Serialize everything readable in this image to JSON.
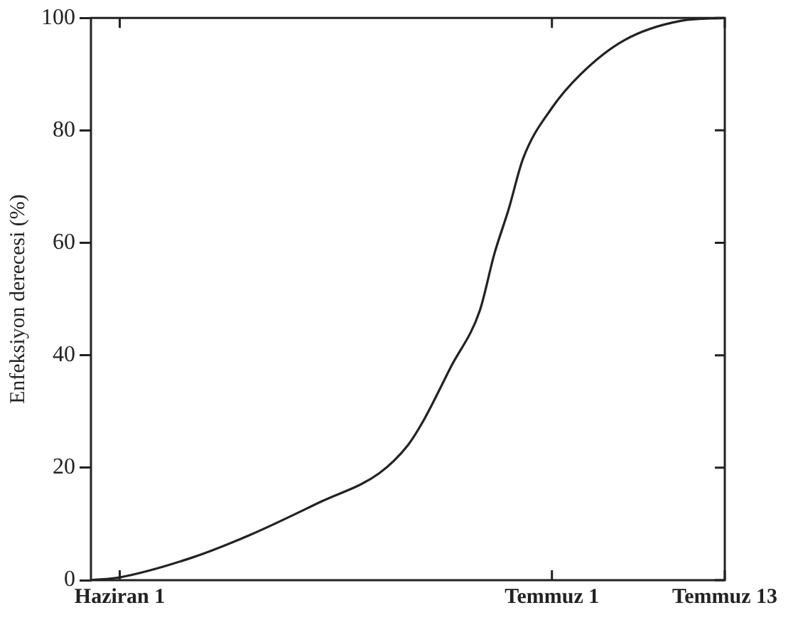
{
  "chart_data": {
    "type": "line",
    "ylabel": "Enfeksiyon derecesi (%)",
    "x": [
      "--05-30",
      "--06-01",
      "--06-06",
      "--06-10",
      "--06-15",
      "--06-19",
      "--06-21",
      "--06-22",
      "--06-24",
      "--06-26",
      "--06-27",
      "--06-28",
      "--06-29",
      "--07-01",
      "--07-03",
      "--07-06",
      "--07-10",
      "--07-13"
    ],
    "series": [
      {
        "color": "#222222",
        "values": [
          0,
          0.5,
          4,
          8,
          14,
          19,
          24,
          28,
          38,
          48,
          58,
          66,
          75,
          84,
          90,
          96,
          99.5,
          100
        ]
      }
    ],
    "xlim": [
      "--05-30",
      "--07-13"
    ],
    "xticks": [
      {
        "value": "--06-01",
        "label": "Haziran 1"
      },
      {
        "value": "--07-01",
        "label": "Temmuz 1"
      },
      {
        "value": "--07-13",
        "label": "Temmuz 13"
      }
    ],
    "ylim": [
      0,
      100
    ],
    "yticks": [
      0,
      20,
      40,
      60,
      80,
      100
    ],
    "marker": "none",
    "line_style": "solid",
    "legend": false
  }
}
